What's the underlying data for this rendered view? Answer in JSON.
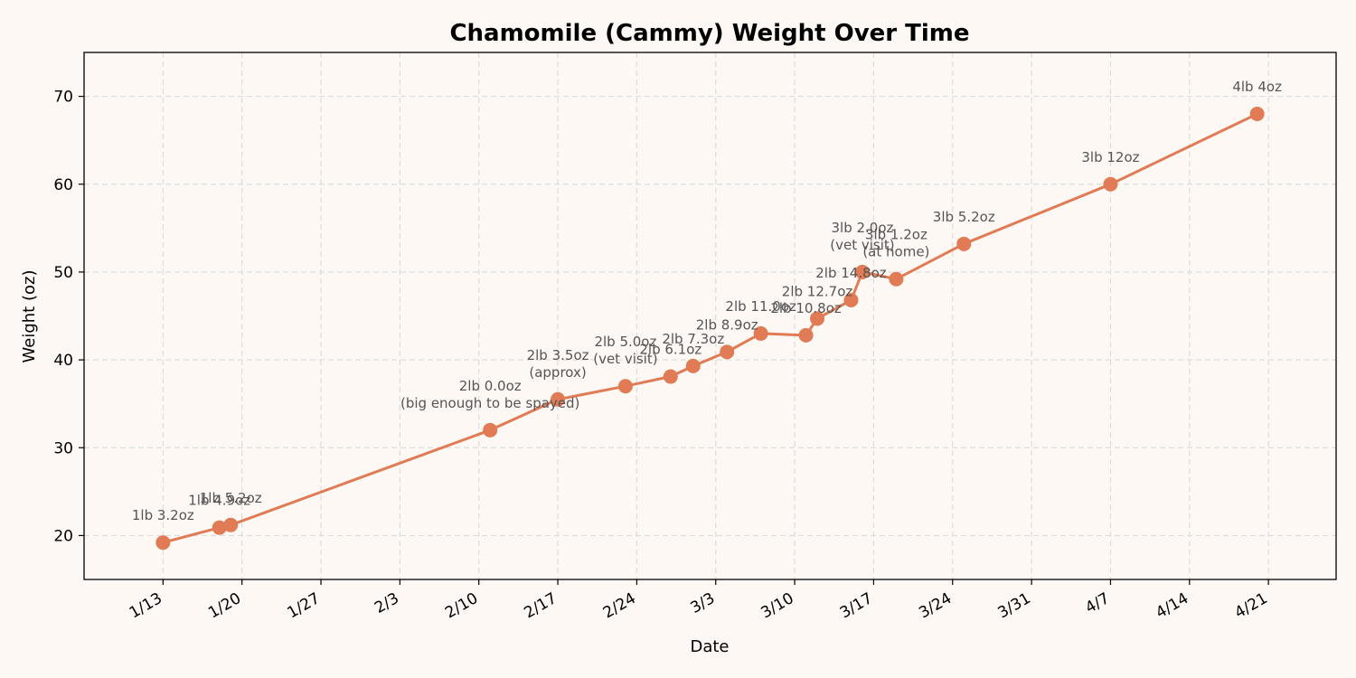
{
  "chart_data": {
    "type": "line",
    "title": "Chamomile (Cammy) Weight Over Time",
    "xlabel": "Date",
    "ylabel": "Weight (oz)",
    "ylim": [
      15,
      75
    ],
    "xlim": [
      "2025-01-06",
      "2025-04-27"
    ],
    "x_ticks": [
      "1/13",
      "1/20",
      "1/27",
      "2/3",
      "2/10",
      "2/17",
      "2/24",
      "3/3",
      "3/10",
      "3/17",
      "3/24",
      "3/31",
      "4/7",
      "4/14",
      "4/21"
    ],
    "y_ticks": [
      20,
      30,
      40,
      50,
      60,
      70
    ],
    "grid": true,
    "color": "#e07b55",
    "series": [
      {
        "points": [
          {
            "x": "2025-01-13",
            "y": 19.2,
            "label": [
              "1lb 3.2oz"
            ]
          },
          {
            "x": "2025-01-18",
            "y": 20.9,
            "label": [
              "1lb 4.9oz"
            ]
          },
          {
            "x": "2025-01-19",
            "y": 21.2,
            "label": [
              "1lb 5.2oz"
            ]
          },
          {
            "x": "2025-02-11",
            "y": 32.0,
            "label": [
              "2lb 0.0oz",
              "(big enough to be spayed)"
            ]
          },
          {
            "x": "2025-02-17",
            "y": 35.5,
            "label": [
              "2lb 3.5oz",
              "(approx)"
            ]
          },
          {
            "x": "2025-02-23",
            "y": 37.0,
            "label": [
              "2lb 5.0oz",
              "(vet visit)"
            ]
          },
          {
            "x": "2025-02-27",
            "y": 38.1,
            "label": [
              "2lb 6.1oz"
            ]
          },
          {
            "x": "2025-03-01",
            "y": 39.3,
            "label": [
              "2lb 7.3oz"
            ]
          },
          {
            "x": "2025-03-04",
            "y": 40.9,
            "label": [
              "2lb 8.9oz"
            ]
          },
          {
            "x": "2025-03-07",
            "y": 43.0,
            "label": [
              "2lb 11.0oz"
            ]
          },
          {
            "x": "2025-03-11",
            "y": 42.8,
            "label": [
              "2lb 10.8oz"
            ]
          },
          {
            "x": "2025-03-12",
            "y": 44.7,
            "label": [
              "2lb 12.7oz"
            ]
          },
          {
            "x": "2025-03-15",
            "y": 46.8,
            "label": [
              "2lb 14.8oz"
            ]
          },
          {
            "x": "2025-03-16",
            "y": 50.0,
            "label": [
              "3lb 2.0oz",
              "(vet visit)"
            ]
          },
          {
            "x": "2025-03-19",
            "y": 49.2,
            "label": [
              "3lb 1.2oz",
              "(at home)"
            ]
          },
          {
            "x": "2025-03-25",
            "y": 53.2,
            "label": [
              "3lb 5.2oz"
            ]
          },
          {
            "x": "2025-04-07",
            "y": 60.0,
            "label": [
              "3lb 12oz"
            ]
          },
          {
            "x": "2025-04-20",
            "y": 68.0,
            "label": [
              "4lb 4oz"
            ]
          }
        ]
      }
    ]
  }
}
